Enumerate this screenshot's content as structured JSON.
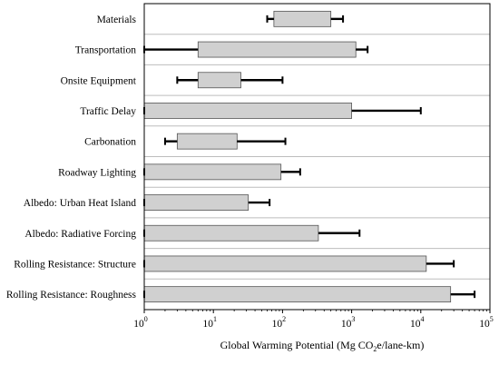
{
  "chart_data": {
    "type": "bar",
    "orientation": "horizontal",
    "xscale": "log",
    "xlim": [
      1,
      100000
    ],
    "grid": true,
    "legend": "none",
    "xlabel": {
      "prefix": "Global Warming Potential (Mg CO",
      "subscript": "2",
      "suffix": "e/lane-km)"
    },
    "xticks": [
      {
        "base": "10",
        "exp": "0",
        "value": 1
      },
      {
        "base": "10",
        "exp": "1",
        "value": 10
      },
      {
        "base": "10",
        "exp": "2",
        "value": 100
      },
      {
        "base": "10",
        "exp": "3",
        "value": 1000
      },
      {
        "base": "10",
        "exp": "4",
        "value": 10000
      },
      {
        "base": "10",
        "exp": "5",
        "value": 100000
      }
    ],
    "categories": [
      "Materials",
      "Transportation",
      "Onsite Equipment",
      "Traffic Delay",
      "Carbonation",
      "Roadway Lighting",
      "Albedo: Urban Heat Island",
      "Albedo: Radiative Forcing",
      "Rolling Resistance: Structure",
      "Rolling Resistance: Roughness"
    ],
    "bars": [
      {
        "low": 75,
        "high": 500,
        "err_low": 60,
        "err_high": 750
      },
      {
        "low": 6,
        "high": 1150,
        "err_low": 1,
        "err_high": 1700
      },
      {
        "low": 6,
        "high": 25,
        "err_low": 3,
        "err_high": 100
      },
      {
        "low": 1,
        "high": 1000,
        "err_low": 1,
        "err_high": 10000
      },
      {
        "low": 3,
        "high": 22,
        "err_low": 2,
        "err_high": 110
      },
      {
        "low": 1,
        "high": 95,
        "err_low": 1,
        "err_high": 180
      },
      {
        "low": 1,
        "high": 32,
        "err_low": 1,
        "err_high": 65
      },
      {
        "low": 1,
        "high": 330,
        "err_low": 1,
        "err_high": 1300
      },
      {
        "low": 1,
        "high": 12000,
        "err_low": 1,
        "err_high": 30000
      },
      {
        "low": 1,
        "high": 27000,
        "err_low": 1,
        "err_high": 60000
      }
    ],
    "colors": {
      "bar_fill": "#d0d0d0",
      "bar_stroke": "#555555",
      "grid": "#bdbdbd",
      "axis": "#000000",
      "error": "#000000"
    }
  }
}
